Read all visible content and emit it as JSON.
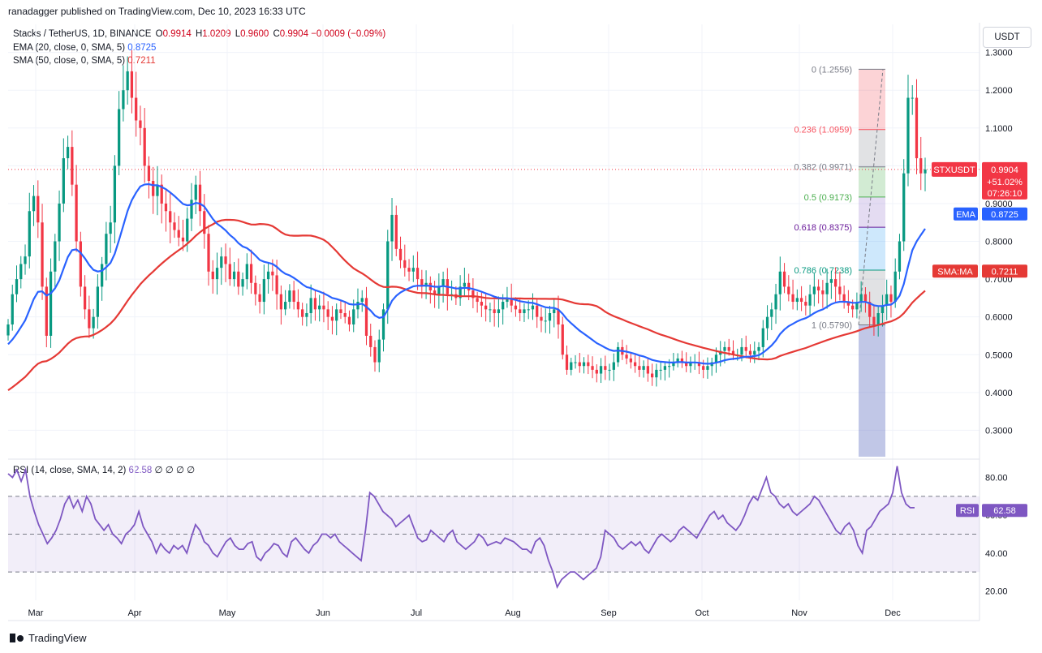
{
  "header": {
    "caption": "ranadagger published on TradingView.com, Dec 10, 2023 16:33 UTC"
  },
  "legend": {
    "symbol": "Stacks / TetherUS, 1D, BINANCE",
    "o_label": "O",
    "o": "0.9914",
    "h_label": "H",
    "h": "1.0209",
    "l_label": "L",
    "l": "0.9600",
    "c_label": "C",
    "c": "0.9904",
    "change": "−0.0009 (−0.09%)",
    "ema_label": "EMA (20, close, 0, SMA, 5)",
    "ema_value": "0.8725",
    "sma_label": "SMA (50, close, 0, SMA, 5)",
    "sma_value": "0.7211",
    "rsi_label": "RSI (14, close, SMA, 14, 2)",
    "rsi_value": "62.58",
    "rsi_extra": "∅ ∅ ∅ ∅"
  },
  "currency": "USDT",
  "colors": {
    "up": "#089981",
    "down": "#f23645",
    "ema": "#2962ff",
    "sma": "#e53935",
    "rsi": "#7e57c2"
  },
  "chart_data": {
    "type": "candlestick",
    "ylim": [
      0.23,
      1.31
    ],
    "price_ticks": [
      "0.3000",
      "0.4000",
      "0.5000",
      "0.6000",
      "0.7000",
      "0.8000",
      "0.9000",
      "1.0000",
      "1.1000",
      "1.2000",
      "1.3000"
    ],
    "x_labels": [
      "Mar",
      "Apr",
      "May",
      "Jun",
      "Jul",
      "Aug",
      "Sep",
      "Oct",
      "Nov",
      "Dec"
    ],
    "fib_levels": [
      {
        "label": "0 (1.2556)",
        "value": 1.2556
      },
      {
        "label": "0.236 (1.0959)",
        "value": 1.0959
      },
      {
        "label": "0.382 (0.9971)",
        "value": 0.9971
      },
      {
        "label": "0.5 (0.9173)",
        "value": 0.9173
      },
      {
        "label": "0.618 (0.8375)",
        "value": 0.8375
      },
      {
        "label": "0.786 (0.7238)",
        "value": 0.7238
      },
      {
        "label": "1 (0.5790)",
        "value": 0.579
      }
    ],
    "price_tags": [
      {
        "label": "STXUSDT",
        "value": "0.9904",
        "sub1": "+51.02%",
        "sub2": "07:26:10",
        "price": 0.9904,
        "color": "#f23645"
      },
      {
        "label": "EMA",
        "value": "0.8725",
        "price": 0.8725,
        "color": "#2962ff"
      },
      {
        "label": "SMA:MA",
        "value": "0.7211",
        "price": 0.7211,
        "color": "#e53935"
      }
    ],
    "close": [
      0.58,
      0.66,
      0.7,
      0.74,
      0.76,
      0.88,
      0.92,
      0.85,
      0.68,
      0.55,
      0.72,
      0.8,
      0.9,
      1.02,
      1.05,
      0.95,
      0.8,
      0.68,
      0.62,
      0.57,
      0.6,
      0.68,
      0.74,
      0.82,
      0.85,
      1.0,
      1.15,
      1.2,
      1.25,
      1.18,
      1.12,
      1.1,
      1.0,
      0.96,
      0.92,
      0.95,
      0.9,
      0.88,
      0.85,
      0.83,
      0.81,
      0.8,
      0.86,
      0.91,
      0.95,
      0.88,
      0.82,
      0.72,
      0.7,
      0.73,
      0.76,
      0.74,
      0.7,
      0.72,
      0.68,
      0.7,
      0.74,
      0.69,
      0.66,
      0.64,
      0.7,
      0.72,
      0.71,
      0.66,
      0.62,
      0.64,
      0.67,
      0.64,
      0.62,
      0.6,
      0.61,
      0.65,
      0.62,
      0.63,
      0.62,
      0.6,
      0.59,
      0.62,
      0.61,
      0.6,
      0.58,
      0.62,
      0.64,
      0.65,
      0.55,
      0.52,
      0.48,
      0.54,
      0.62,
      0.8,
      0.87,
      0.78,
      0.75,
      0.73,
      0.72,
      0.73,
      0.7,
      0.68,
      0.69,
      0.67,
      0.66,
      0.68,
      0.7,
      0.66,
      0.66,
      0.65,
      0.68,
      0.69,
      0.67,
      0.65,
      0.64,
      0.63,
      0.62,
      0.62,
      0.61,
      0.62,
      0.64,
      0.65,
      0.63,
      0.62,
      0.61,
      0.62,
      0.62,
      0.63,
      0.6,
      0.59,
      0.59,
      0.61,
      0.62,
      0.58,
      0.5,
      0.46,
      0.48,
      0.48,
      0.47,
      0.48,
      0.47,
      0.46,
      0.45,
      0.47,
      0.46,
      0.46,
      0.48,
      0.52,
      0.5,
      0.49,
      0.48,
      0.47,
      0.46,
      0.47,
      0.45,
      0.44,
      0.46,
      0.46,
      0.47,
      0.47,
      0.48,
      0.49,
      0.48,
      0.47,
      0.48,
      0.48,
      0.47,
      0.46,
      0.47,
      0.48,
      0.5,
      0.51,
      0.52,
      0.51,
      0.5,
      0.5,
      0.52,
      0.51,
      0.5,
      0.51,
      0.52,
      0.57,
      0.6,
      0.62,
      0.66,
      0.72,
      0.68,
      0.66,
      0.64,
      0.65,
      0.64,
      0.63,
      0.66,
      0.68,
      0.67,
      0.66,
      0.69,
      0.7,
      0.68,
      0.66,
      0.64,
      0.63,
      0.62,
      0.64,
      0.66,
      0.64,
      0.6,
      0.58,
      0.61,
      0.63,
      0.66,
      0.64,
      0.72,
      0.8,
      0.98,
      1.18,
      1.18,
      1.02,
      0.98,
      0.99
    ]
  },
  "rsi_data": {
    "ylim": [
      15,
      88
    ],
    "ticks": [
      "20.00",
      "40.00",
      "60.00",
      "80.00"
    ],
    "bands": [
      70,
      50,
      30
    ],
    "values": [
      82,
      80,
      84,
      78,
      84,
      70,
      62,
      55,
      50,
      45,
      48,
      52,
      58,
      66,
      70,
      64,
      68,
      62,
      70,
      66,
      58,
      55,
      52,
      55,
      50,
      48,
      45,
      50,
      52,
      55,
      62,
      54,
      50,
      46,
      40,
      45,
      42,
      40,
      44,
      42,
      44,
      40,
      48,
      55,
      52,
      46,
      44,
      40,
      38,
      42,
      46,
      48,
      44,
      42,
      42,
      45,
      46,
      38,
      36,
      40,
      42,
      45,
      44,
      40,
      38,
      46,
      48,
      45,
      42,
      40,
      44,
      46,
      50,
      50,
      48,
      50,
      46,
      44,
      42,
      40,
      38,
      36,
      52,
      72,
      70,
      66,
      62,
      60,
      58,
      54,
      56,
      58,
      60,
      54,
      48,
      46,
      47,
      52,
      50,
      48,
      46,
      50,
      52,
      46,
      44,
      42,
      44,
      46,
      50,
      48,
      44,
      45,
      46,
      45,
      48,
      47,
      46,
      44,
      42,
      42,
      40,
      46,
      48,
      44,
      36,
      30,
      22,
      26,
      28,
      30,
      30,
      28,
      26,
      28,
      30,
      32,
      38,
      52,
      50,
      48,
      44,
      42,
      44,
      46,
      44,
      46,
      42,
      40,
      44,
      48,
      50,
      48,
      46,
      48,
      52,
      54,
      52,
      50,
      48,
      52,
      56,
      60,
      62,
      58,
      60,
      56,
      54,
      52,
      55,
      60,
      66,
      70,
      68,
      74,
      80,
      72,
      70,
      66,
      64,
      66,
      62,
      60,
      62,
      64,
      66,
      70,
      68,
      64,
      60,
      56,
      52,
      50,
      54,
      56,
      52,
      44,
      40,
      52,
      54,
      58,
      62,
      64,
      66,
      72,
      86,
      72,
      66,
      64,
      64
    ]
  }
}
